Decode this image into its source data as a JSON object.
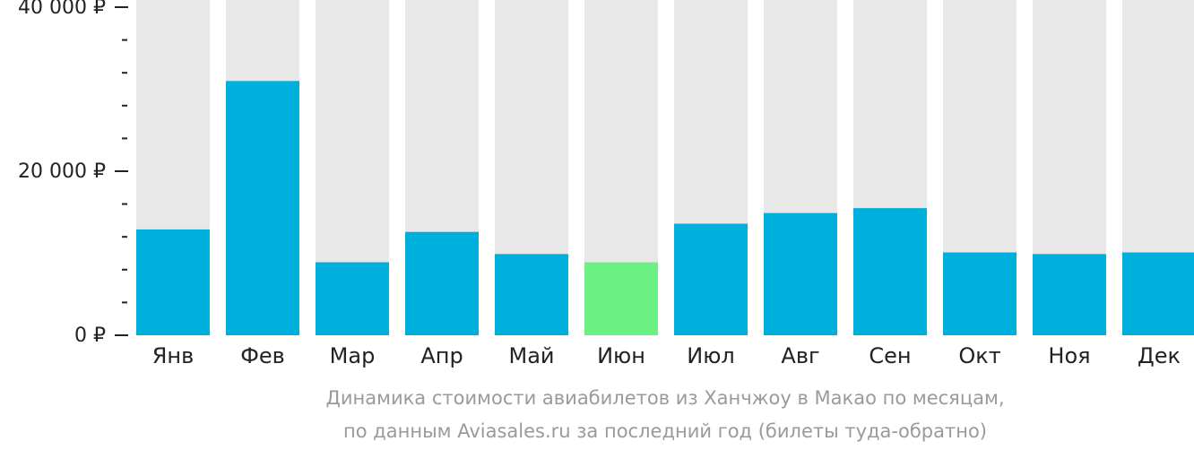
{
  "chart_data": {
    "type": "bar",
    "categories": [
      "Янв",
      "Фев",
      "Мар",
      "Апр",
      "Май",
      "Июн",
      "Июл",
      "Авг",
      "Сен",
      "Окт",
      "Ноя",
      "Дек"
    ],
    "values": [
      12900,
      31000,
      8900,
      12600,
      9900,
      8900,
      13600,
      14900,
      15500,
      10100,
      9900,
      10100
    ],
    "highlight_index": 5,
    "ylim": [
      0,
      40000
    ],
    "yticks": [
      {
        "value": 0,
        "label": "0 ₽"
      },
      {
        "value": 20000,
        "label": "20 000 ₽"
      },
      {
        "value": 40000,
        "label": "40 000 ₽"
      }
    ],
    "minor_tick_step": 4000,
    "caption": [
      "Динамика стоимости авиабилетов из Ханчжоу в Макао по месяцам,",
      "по данным Aviasales.ru за последний год (билеты туда-обратно)"
    ],
    "colors": {
      "bar": "#00b0dc",
      "highlight": "#6bf084",
      "track": "#e8e8e8",
      "axis": "#222222",
      "caption": "#9a9a9a"
    }
  }
}
